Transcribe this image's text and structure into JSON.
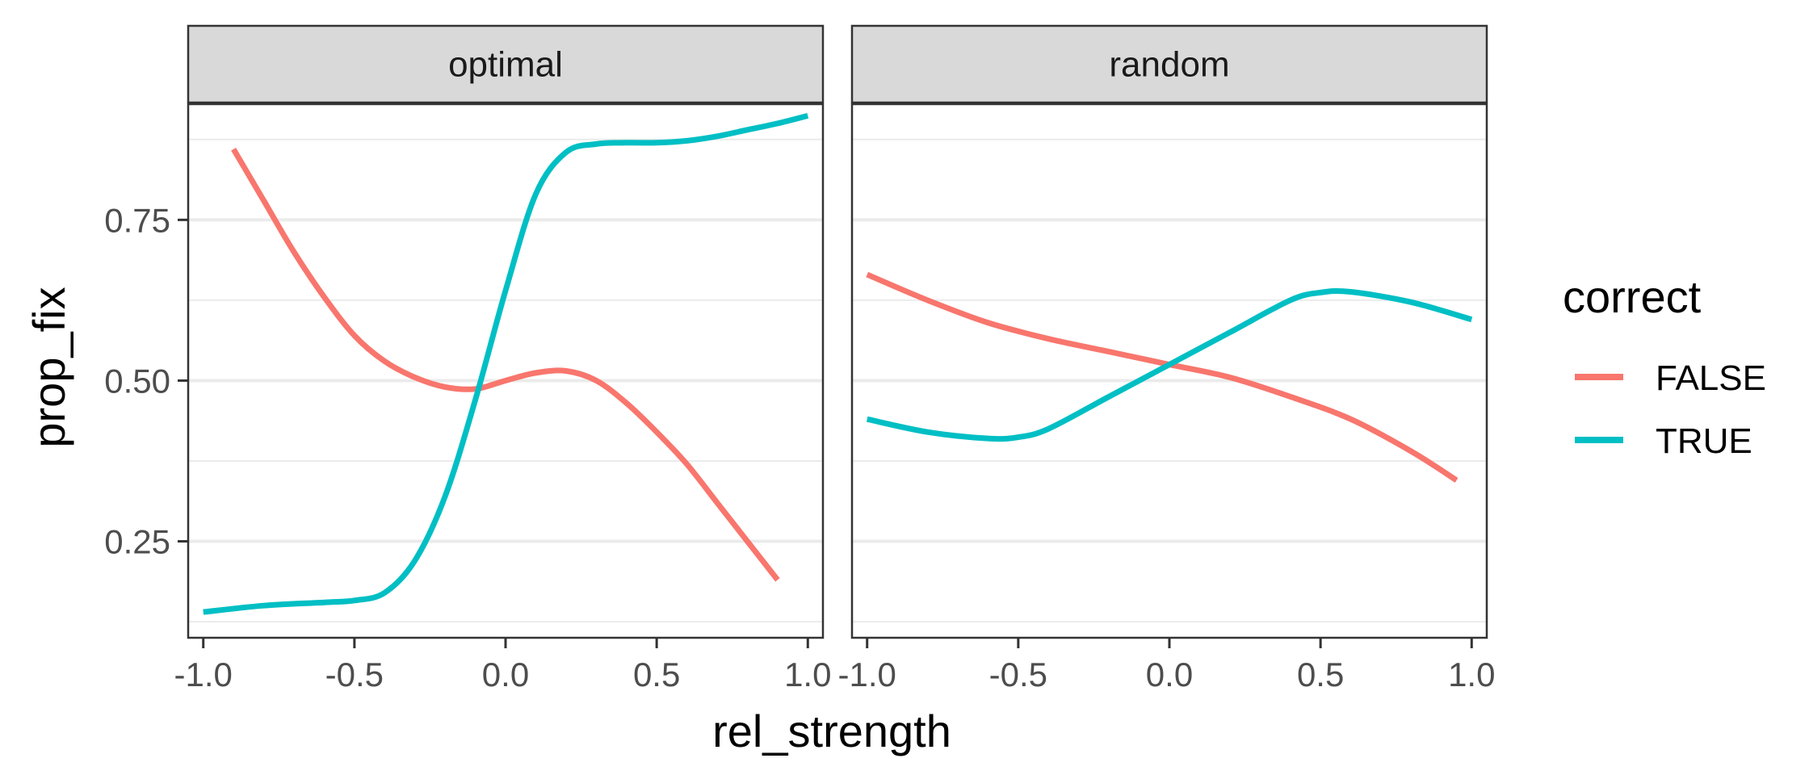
{
  "chart_data": {
    "type": "line",
    "xlabel": "rel_strength",
    "ylabel": "prop_fix",
    "xlim": [
      -1.05,
      1.05
    ],
    "ylim": [
      0.1,
      0.93
    ],
    "x_ticks": [
      -1.0,
      -0.5,
      0.0,
      0.5,
      1.0
    ],
    "x_tick_labels": [
      "-1.0",
      "-0.5",
      "0.0",
      "0.5",
      "1.0"
    ],
    "y_ticks": [
      0.25,
      0.5,
      0.75
    ],
    "y_tick_labels": [
      "0.25",
      "0.50",
      "0.75"
    ],
    "y_minor_ticks": [
      0.125,
      0.375,
      0.625,
      0.875
    ],
    "grid": true,
    "legend": {
      "title": "correct",
      "position": "right",
      "entries": [
        {
          "label": "FALSE",
          "color": "#F8766D"
        },
        {
          "label": "TRUE",
          "color": "#00BFC4"
        }
      ]
    },
    "panels": [
      {
        "title": "optimal",
        "series": [
          {
            "name": "FALSE",
            "color": "#F8766D",
            "x": [
              -0.9,
              -0.8,
              -0.7,
              -0.6,
              -0.5,
              -0.4,
              -0.3,
              -0.2,
              -0.1,
              0.0,
              0.1,
              0.2,
              0.3,
              0.4,
              0.5,
              0.6,
              0.7,
              0.8,
              0.9
            ],
            "y": [
              0.86,
              0.78,
              0.7,
              0.63,
              0.57,
              0.53,
              0.505,
              0.49,
              0.487,
              0.5,
              0.512,
              0.515,
              0.5,
              0.465,
              0.42,
              0.37,
              0.31,
              0.25,
              0.19
            ]
          },
          {
            "name": "TRUE",
            "color": "#00BFC4",
            "x": [
              -1.0,
              -0.8,
              -0.6,
              -0.5,
              -0.4,
              -0.3,
              -0.2,
              -0.1,
              0.0,
              0.1,
              0.2,
              0.3,
              0.4,
              0.5,
              0.6,
              0.7,
              0.8,
              0.9,
              1.0
            ],
            "y": [
              0.14,
              0.15,
              0.155,
              0.158,
              0.17,
              0.22,
              0.32,
              0.47,
              0.64,
              0.79,
              0.855,
              0.868,
              0.87,
              0.87,
              0.873,
              0.88,
              0.89,
              0.9,
              0.912
            ]
          }
        ]
      },
      {
        "title": "random",
        "series": [
          {
            "name": "FALSE",
            "color": "#F8766D",
            "x": [
              -1.0,
              -0.8,
              -0.6,
              -0.4,
              -0.2,
              0.0,
              0.2,
              0.4,
              0.6,
              0.8,
              0.95
            ],
            "y": [
              0.665,
              0.625,
              0.59,
              0.565,
              0.545,
              0.525,
              0.505,
              0.475,
              0.44,
              0.39,
              0.345
            ]
          },
          {
            "name": "TRUE",
            "color": "#00BFC4",
            "x": [
              -1.0,
              -0.8,
              -0.6,
              -0.5,
              -0.4,
              -0.2,
              0.0,
              0.2,
              0.4,
              0.5,
              0.6,
              0.8,
              1.0
            ],
            "y": [
              0.44,
              0.42,
              0.41,
              0.412,
              0.425,
              0.475,
              0.525,
              0.575,
              0.625,
              0.637,
              0.638,
              0.622,
              0.595
            ]
          }
        ]
      }
    ]
  }
}
